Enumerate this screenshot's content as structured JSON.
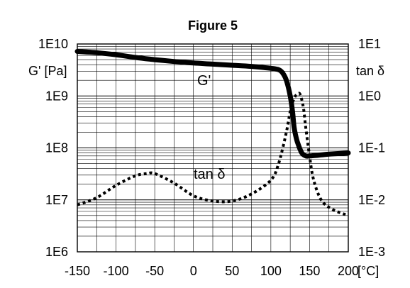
{
  "chart_data": {
    "type": "line",
    "title": "Figure 5",
    "x_unit": "[°C]",
    "xlim": [
      -150,
      200
    ],
    "x_ticks": [
      "-150",
      "-100",
      "-50",
      "0",
      "50",
      "100",
      "150",
      "200"
    ],
    "left_axis": {
      "label": "G' [Pa]",
      "scale": "log",
      "ylim": [
        1000000.0,
        10000000000.0
      ],
      "tick_labels": [
        "1E6",
        "1E7",
        "1E8",
        "1E9",
        "1E10"
      ]
    },
    "right_axis": {
      "label": "tan δ",
      "scale": "log",
      "ylim": [
        0.001,
        10
      ],
      "tick_labels": [
        "1E-3",
        "1E-2",
        "1E-1",
        "1E0",
        "1E1"
      ]
    },
    "grid": true,
    "series": [
      {
        "name": "G'",
        "axis": "left",
        "style": "solid",
        "color": "#000000",
        "x": [
          -150,
          -125,
          -100,
          -75,
          -50,
          -25,
          0,
          25,
          50,
          75,
          100,
          110,
          115,
          120,
          125,
          128,
          130,
          133,
          136,
          140,
          145,
          150,
          160,
          175,
          200
        ],
        "y": [
          7200000000.0,
          6800000000.0,
          6200000000.0,
          5500000000.0,
          5000000000.0,
          4600000000.0,
          4300000000.0,
          4100000000.0,
          3900000000.0,
          3700000000.0,
          3400000000.0,
          3200000000.0,
          2800000000.0,
          2000000000.0,
          1000000000.0,
          500000000.0,
          250000000.0,
          150000000.0,
          110000000.0,
          80000000.0,
          70000000.0,
          70000000.0,
          72000000.0,
          76000000.0,
          80000000.0
        ]
      },
      {
        "name": "tan δ",
        "axis": "right",
        "style": "dotted",
        "color": "#000000",
        "x": [
          -150,
          -125,
          -100,
          -75,
          -60,
          -50,
          -25,
          0,
          25,
          50,
          75,
          100,
          110,
          120,
          125,
          130,
          135,
          138,
          142,
          145,
          150,
          155,
          165,
          180,
          200
        ],
        "y": [
          0.008,
          0.011,
          0.019,
          0.029,
          0.032,
          0.032,
          0.021,
          0.012,
          0.0095,
          0.0095,
          0.013,
          0.024,
          0.05,
          0.2,
          0.5,
          0.9,
          1.1,
          1.05,
          0.6,
          0.25,
          0.07,
          0.025,
          0.01,
          0.0065,
          0.005
        ]
      }
    ]
  }
}
